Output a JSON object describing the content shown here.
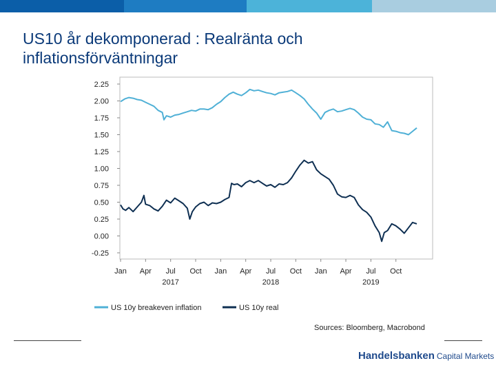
{
  "top_bar": {
    "colors": [
      "#0b5ea8",
      "#1e7cc2",
      "#4cb3d9",
      "#a9cde0"
    ]
  },
  "slide": {
    "title_line1": "US10 år dekomponerad : Realränta och",
    "title_line2": "inflationsförväntningar"
  },
  "sources": "Sources: Bloomberg, Macrobond",
  "brand": {
    "name": "Handelsbanken",
    "sub": "Capital Markets",
    "color": "#1f4a8c"
  },
  "chart_data": {
    "type": "line",
    "y_ticks": [
      "2.25",
      "2.00",
      "1.75",
      "1.50",
      "1.25",
      "1.00",
      "0.75",
      "0.50",
      "0.25",
      "0.00",
      "-0.25"
    ],
    "ylim": [
      -0.25,
      2.25
    ],
    "x_tick_labels": [
      "Jan",
      "Apr",
      "Jul",
      "Oct",
      "Jan",
      "Apr",
      "Jul",
      "Oct",
      "Jan",
      "Apr",
      "Jul",
      "Oct"
    ],
    "year_labels": [
      {
        "label": "2017",
        "month_index": 6
      },
      {
        "label": "2018",
        "month_index": 18
      },
      {
        "label": "2019",
        "month_index": 30
      }
    ],
    "x_range_months": [
      0,
      35.5
    ],
    "series": [
      {
        "name": "US 10y breakeven inflation",
        "color": "#4fb0d6",
        "points": [
          [
            0,
            1.99
          ],
          [
            0.5,
            2.03
          ],
          [
            1,
            2.05
          ],
          [
            1.5,
            2.04
          ],
          [
            2,
            2.02
          ],
          [
            2.5,
            2.01
          ],
          [
            3,
            1.98
          ],
          [
            3.5,
            1.95
          ],
          [
            4,
            1.92
          ],
          [
            4.5,
            1.86
          ],
          [
            5,
            1.83
          ],
          [
            5.2,
            1.72
          ],
          [
            5.5,
            1.78
          ],
          [
            6,
            1.76
          ],
          [
            6.5,
            1.79
          ],
          [
            7,
            1.8
          ],
          [
            7.5,
            1.82
          ],
          [
            8,
            1.84
          ],
          [
            8.5,
            1.86
          ],
          [
            9,
            1.85
          ],
          [
            9.5,
            1.88
          ],
          [
            10,
            1.88
          ],
          [
            10.5,
            1.87
          ],
          [
            11,
            1.9
          ],
          [
            11.5,
            1.95
          ],
          [
            12,
            1.99
          ],
          [
            12.5,
            2.05
          ],
          [
            13,
            2.1
          ],
          [
            13.5,
            2.13
          ],
          [
            14,
            2.1
          ],
          [
            14.5,
            2.08
          ],
          [
            15,
            2.12
          ],
          [
            15.5,
            2.17
          ],
          [
            16,
            2.15
          ],
          [
            16.5,
            2.16
          ],
          [
            17,
            2.14
          ],
          [
            17.5,
            2.12
          ],
          [
            18,
            2.11
          ],
          [
            18.5,
            2.09
          ],
          [
            19,
            2.12
          ],
          [
            19.5,
            2.13
          ],
          [
            20,
            2.14
          ],
          [
            20.5,
            2.16
          ],
          [
            21,
            2.12
          ],
          [
            21.5,
            2.08
          ],
          [
            22,
            2.03
          ],
          [
            22.5,
            1.95
          ],
          [
            23,
            1.88
          ],
          [
            23.5,
            1.82
          ],
          [
            24,
            1.73
          ],
          [
            24.5,
            1.83
          ],
          [
            25,
            1.86
          ],
          [
            25.5,
            1.88
          ],
          [
            26,
            1.84
          ],
          [
            26.5,
            1.85
          ],
          [
            27,
            1.87
          ],
          [
            27.5,
            1.89
          ],
          [
            28,
            1.87
          ],
          [
            28.5,
            1.82
          ],
          [
            29,
            1.76
          ],
          [
            29.5,
            1.73
          ],
          [
            30,
            1.72
          ],
          [
            30.5,
            1.66
          ],
          [
            31,
            1.65
          ],
          [
            31.5,
            1.61
          ],
          [
            32,
            1.69
          ],
          [
            32.5,
            1.56
          ],
          [
            33,
            1.55
          ],
          [
            33.5,
            1.53
          ],
          [
            34,
            1.52
          ],
          [
            34.5,
            1.5
          ],
          [
            35,
            1.55
          ],
          [
            35.5,
            1.6
          ]
        ]
      },
      {
        "name": "US 10y real",
        "color": "#0e2f52",
        "points": [
          [
            0,
            0.46
          ],
          [
            0.3,
            0.4
          ],
          [
            0.6,
            0.38
          ],
          [
            1,
            0.42
          ],
          [
            1.5,
            0.36
          ],
          [
            2,
            0.43
          ],
          [
            2.5,
            0.5
          ],
          [
            2.8,
            0.6
          ],
          [
            3,
            0.47
          ],
          [
            3.5,
            0.45
          ],
          [
            4,
            0.4
          ],
          [
            4.5,
            0.37
          ],
          [
            5,
            0.44
          ],
          [
            5.5,
            0.53
          ],
          [
            6,
            0.49
          ],
          [
            6.5,
            0.56
          ],
          [
            7,
            0.52
          ],
          [
            7.5,
            0.48
          ],
          [
            8,
            0.41
          ],
          [
            8.3,
            0.25
          ],
          [
            8.6,
            0.36
          ],
          [
            9,
            0.43
          ],
          [
            9.5,
            0.48
          ],
          [
            10,
            0.5
          ],
          [
            10.5,
            0.45
          ],
          [
            11,
            0.49
          ],
          [
            11.5,
            0.48
          ],
          [
            12,
            0.5
          ],
          [
            12.5,
            0.54
          ],
          [
            13,
            0.57
          ],
          [
            13.3,
            0.78
          ],
          [
            13.6,
            0.76
          ],
          [
            14,
            0.77
          ],
          [
            14.5,
            0.73
          ],
          [
            15,
            0.79
          ],
          [
            15.5,
            0.82
          ],
          [
            16,
            0.79
          ],
          [
            16.5,
            0.82
          ],
          [
            17,
            0.78
          ],
          [
            17.5,
            0.74
          ],
          [
            18,
            0.76
          ],
          [
            18.5,
            0.72
          ],
          [
            19,
            0.77
          ],
          [
            19.5,
            0.76
          ],
          [
            20,
            0.79
          ],
          [
            20.5,
            0.86
          ],
          [
            21,
            0.96
          ],
          [
            21.5,
            1.05
          ],
          [
            22,
            1.12
          ],
          [
            22.5,
            1.08
          ],
          [
            23,
            1.1
          ],
          [
            23.5,
            0.98
          ],
          [
            24,
            0.92
          ],
          [
            24.5,
            0.88
          ],
          [
            25,
            0.84
          ],
          [
            25.5,
            0.75
          ],
          [
            26,
            0.62
          ],
          [
            26.5,
            0.58
          ],
          [
            27,
            0.57
          ],
          [
            27.5,
            0.6
          ],
          [
            28,
            0.57
          ],
          [
            28.5,
            0.46
          ],
          [
            29,
            0.39
          ],
          [
            29.5,
            0.35
          ],
          [
            30,
            0.28
          ],
          [
            30.5,
            0.15
          ],
          [
            31,
            0.05
          ],
          [
            31.3,
            -0.08
          ],
          [
            31.6,
            0.05
          ],
          [
            32,
            0.08
          ],
          [
            32.5,
            0.18
          ],
          [
            33,
            0.15
          ],
          [
            33.5,
            0.1
          ],
          [
            34,
            0.04
          ],
          [
            34.5,
            0.12
          ],
          [
            35,
            0.2
          ],
          [
            35.5,
            0.18
          ]
        ]
      }
    ],
    "legend": [
      "US 10y breakeven inflation",
      "US 10y real"
    ]
  }
}
